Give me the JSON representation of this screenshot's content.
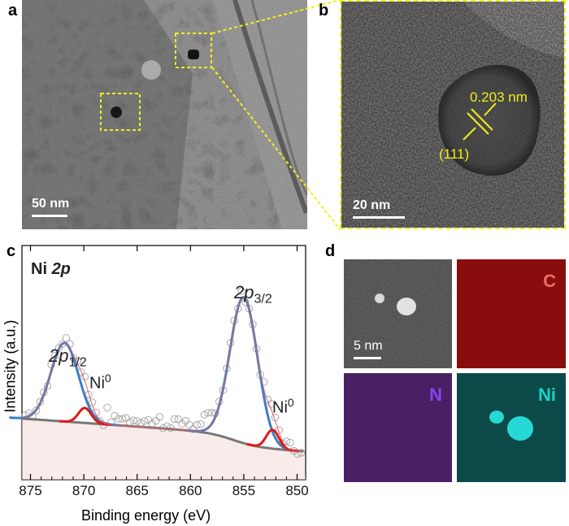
{
  "panels": {
    "a": {
      "label": "a",
      "scale": "50 nm"
    },
    "b": {
      "label": "b",
      "scale": "20 nm",
      "d_spacing": "0.203 nm",
      "plane": "(111)"
    },
    "c": {
      "label": "c"
    },
    "d": {
      "label": "d",
      "scale": "5 nm",
      "maps": [
        "C",
        "N",
        "Ni"
      ]
    }
  },
  "chart_data": {
    "type": "line",
    "title_bold": "Ni ",
    "title_italic": "2p",
    "xlabel": "Binding energy (eV)",
    "ylabel": "Intensity (a.u.)",
    "xlim": [
      875.8,
      849.2
    ],
    "x_ticks": [
      875,
      870,
      865,
      860,
      855,
      850
    ],
    "x_tick_labels": [
      "875",
      "870",
      "865",
      "860",
      "855",
      "850"
    ],
    "peak_labels": {
      "p12_main": "2p",
      "p12_sub": "1/2",
      "p32_main": "2p",
      "p32_sub": "3/2",
      "ni0_main": "Ni",
      "ni0_sup": "0"
    },
    "series": [
      {
        "name": "2p3/2 fit",
        "peaks": [
          {
            "center": 855.0,
            "height": 0.78,
            "width": 1.3
          }
        ],
        "color": "#3a7fc4"
      },
      {
        "name": "2p1/2 fit",
        "peaks": [
          {
            "center": 871.8,
            "height": 0.42,
            "width": 1.3
          }
        ],
        "color": "#3a7fc4"
      },
      {
        "name": "Ni0 2p3/2",
        "peaks": [
          {
            "center": 852.3,
            "height": 0.1,
            "width": 0.6
          }
        ],
        "color": "#e01818"
      },
      {
        "name": "Ni0 2p1/2",
        "peaks": [
          {
            "center": 869.9,
            "height": 0.08,
            "width": 0.6
          }
        ],
        "color": "#e01818"
      }
    ],
    "background_color": "#777777",
    "marker_color": "#a0a0a0"
  }
}
